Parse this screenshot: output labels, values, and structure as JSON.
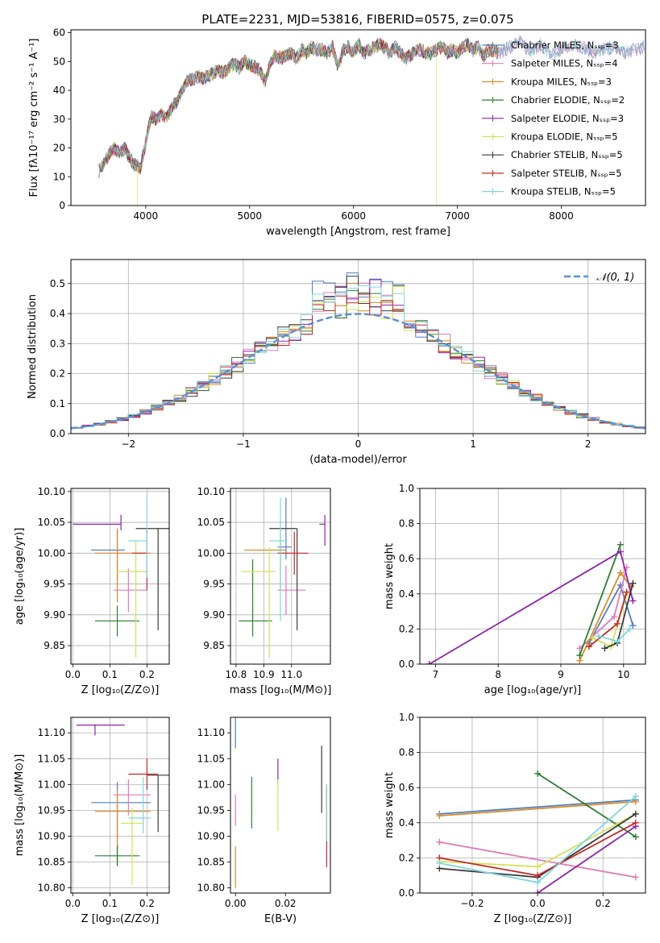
{
  "figure": {
    "title": "PLATE=2231, MJD=53816, FIBERID=0575, z=0.075"
  },
  "colors": {
    "series": [
      "#4f7fbf",
      "#e07ab8",
      "#d98c2b",
      "#2e7d32",
      "#8e24aa",
      "#d4e157",
      "#3a3a3a",
      "#c62828",
      "#7fd6e0"
    ],
    "gaussian": "#5b8fd6",
    "grid": "#b0b0b0"
  },
  "chart_data": [
    {
      "id": "spectrum",
      "type": "line",
      "title": "PLATE=2231, MJD=53816, FIBERID=0575, z=0.075",
      "xlabel": "wavelength [Angstrom, rest frame]",
      "ylabel": "Flux [fλ10⁻¹⁷ erg cm⁻² s⁻¹ A⁻¹]",
      "xlim": [
        3280,
        8810
      ],
      "ylim": [
        0,
        61
      ],
      "xticks": [
        4000,
        5000,
        6000,
        7000,
        8000
      ],
      "yticks": [
        0,
        10,
        20,
        30,
        40,
        50,
        60
      ],
      "grid": false,
      "legend": "top-right",
      "x": [
        3550,
        3600,
        3650,
        3700,
        3750,
        3800,
        3850,
        3900,
        3950,
        4000,
        4050,
        4100,
        4150,
        4200,
        4250,
        4300,
        4350,
        4400,
        4450,
        4500,
        4550,
        4600,
        4650,
        4700,
        4750,
        4800,
        4850,
        4900,
        4950,
        5000,
        5050,
        5100,
        5150,
        5200,
        5250,
        5300,
        5350,
        5400,
        5450,
        5500,
        5550,
        5600,
        5650,
        5700,
        5750,
        5800,
        5850,
        5900,
        5950,
        6000,
        6050,
        6100,
        6150,
        6200,
        6250,
        6300,
        6350,
        6400,
        6450,
        6500,
        6550,
        6600,
        6650,
        6700,
        6750,
        6800,
        6850,
        6900,
        6950,
        7000,
        7050,
        7100,
        7150,
        7200,
        7250,
        7300,
        7350,
        7400,
        7450,
        7500,
        7600,
        7700,
        7800,
        7900,
        8000,
        8100,
        8200,
        8300,
        8400,
        8500,
        8600,
        8700,
        8800
      ],
      "y": [
        12,
        15,
        18,
        20,
        18,
        20,
        16,
        14,
        13,
        22,
        31,
        30,
        32,
        30,
        34,
        36,
        40,
        43,
        44,
        45,
        44,
        45,
        46,
        47,
        46,
        48,
        49,
        48,
        50,
        49,
        48,
        47,
        43,
        50,
        52,
        51,
        52,
        53,
        51,
        54,
        53,
        55,
        54,
        54,
        53,
        55,
        48,
        54,
        55,
        53,
        56,
        53,
        54,
        55,
        56,
        55,
        53,
        55,
        53,
        51,
        52,
        54,
        54,
        53,
        53,
        54,
        55,
        53,
        54,
        53,
        55,
        56,
        54,
        55,
        52,
        54,
        54,
        53,
        54,
        55,
        57,
        53,
        56,
        52,
        54,
        56,
        55,
        53,
        54,
        55,
        53,
        54,
        55
      ],
      "series": [
        {
          "name": "Chabrier MILES, Nₛₛₚ=3"
        },
        {
          "name": "Salpeter MILES, Nₛₛₚ=4"
        },
        {
          "name": "Kroupa MILES, Nₛₛₚ=3"
        },
        {
          "name": "Chabrier ELODIE, Nₛₛₚ=2"
        },
        {
          "name": "Salpeter ELODIE, Nₛₛₚ=3"
        },
        {
          "name": "Kroupa ELODIE, Nₛₛₚ=5"
        },
        {
          "name": "Chabrier STELIB, Nₛₛₚ=5"
        },
        {
          "name": "Salpeter STELIB, Nₛₛₚ=5"
        },
        {
          "name": "Kroupa STELIB, Nₛₛₚ=5"
        }
      ]
    },
    {
      "id": "residuals",
      "type": "line",
      "xlabel": "(data-model)/error",
      "ylabel": "Normed distribution",
      "xlim": [
        -2.5,
        2.5
      ],
      "ylim": [
        0,
        0.58
      ],
      "xticks": [
        -2,
        -1,
        0,
        1,
        2
      ],
      "yticks": [
        0.0,
        0.1,
        0.2,
        0.3,
        0.4,
        0.5
      ],
      "grid": true,
      "legend": "top-right",
      "gaussian_label": "𝒩(0, 1)"
    },
    {
      "id": "age-vs-Z",
      "type": "scatter",
      "xlabel": "Z [log₁₀(Z/Z⊙)]",
      "ylabel": "age  [log₁₀(age/yr)]",
      "xlim": [
        -0.005,
        0.26
      ],
      "ylim": [
        9.82,
        10.105
      ],
      "xticks": [
        0.0,
        0.1,
        0.2
      ],
      "yticks": [
        9.85,
        9.9,
        9.95,
        10.0,
        10.05,
        10.1
      ],
      "grid": true,
      "points": [
        {
          "x": 0.12,
          "y": 10.005,
          "xerr": [
            0.07,
            0.02
          ],
          "yerr": [
            0.06,
            0.035
          ]
        },
        {
          "x": 0.15,
          "y": 9.94,
          "xerr": [
            0.04,
            0.05
          ],
          "yerr": [
            0.035,
            0.035
          ]
        },
        {
          "x": 0.12,
          "y": 10.0,
          "xerr": [
            0.06,
            0.09
          ],
          "yerr": [
            0.08,
            0.04
          ]
        },
        {
          "x": 0.12,
          "y": 9.89,
          "xerr": [
            0.06,
            0.06
          ],
          "yerr": [
            0.025,
            0.025
          ]
        },
        {
          "x": 0.13,
          "y": 10.047,
          "xerr": [
            0.13,
            0.0
          ],
          "yerr": [
            0.01,
            0.015
          ]
        },
        {
          "x": 0.17,
          "y": 9.97,
          "xerr": [
            0.05,
            0.03
          ],
          "yerr": [
            0.14,
            0.05
          ]
        },
        {
          "x": 0.23,
          "y": 10.04,
          "xerr": [
            0.06,
            0.03
          ],
          "yerr": [
            0.165,
            0.0
          ]
        },
        {
          "x": 0.2,
          "y": 10.0,
          "xerr": [
            0.04,
            0.0
          ],
          "yerr": [
            0.06,
            0.04
          ]
        },
        {
          "x": 0.2,
          "y": 10.02,
          "xerr": [
            0.05,
            0.0
          ],
          "yerr": [
            0.06,
            0.07
          ]
        }
      ]
    },
    {
      "id": "age-vs-mass",
      "type": "scatter",
      "xlabel": "mass [log₁₀(M/M⊙)]",
      "xlim": [
        10.78,
        11.14
      ],
      "ylim": [
        9.82,
        10.105
      ],
      "xticks": [
        10.8,
        10.9,
        11.0
      ],
      "yticks": [
        9.85,
        9.9,
        9.95,
        10.0,
        10.05,
        10.1
      ],
      "grid": true,
      "points": [
        {
          "x": 10.98,
          "y": 10.01,
          "xerr": [
            0.03,
            0.02
          ],
          "yerr": [
            0.02,
            0.08
          ]
        },
        {
          "x": 10.98,
          "y": 9.94,
          "xerr": [
            0.03,
            0.07
          ],
          "yerr": [
            0.04,
            0.04
          ]
        },
        {
          "x": 10.96,
          "y": 10.005,
          "xerr": [
            0.13,
            0.02
          ],
          "yerr": [
            0.065,
            0.035
          ]
        },
        {
          "x": 10.86,
          "y": 9.89,
          "xerr": [
            0.05,
            0.07
          ],
          "yerr": [
            0.025,
            0.1
          ]
        },
        {
          "x": 11.12,
          "y": 10.047,
          "xerr": [
            0.02,
            0.0
          ],
          "yerr": [
            0.035,
            0.015
          ]
        },
        {
          "x": 10.92,
          "y": 9.97,
          "xerr": [
            0.1,
            0.02
          ],
          "yerr": [
            0.14,
            0.04
          ]
        },
        {
          "x": 11.02,
          "y": 10.04,
          "xerr": [
            0.1,
            0.0
          ],
          "yerr": [
            0.165,
            0.0
          ]
        },
        {
          "x": 11.01,
          "y": 10.0,
          "xerr": [
            0.06,
            0.05
          ],
          "yerr": [
            0.035,
            0.035
          ]
        },
        {
          "x": 10.96,
          "y": 10.02,
          "xerr": [
            0.04,
            0.02
          ],
          "yerr": [
            0.13,
            0.07
          ]
        }
      ]
    },
    {
      "id": "weight-vs-age",
      "type": "line",
      "xlabel": "age  [log₁₀(age/yr)]",
      "ylabel": "mass weight",
      "xlim": [
        6.75,
        10.35
      ],
      "ylim": [
        0,
        1.0
      ],
      "xticks": [
        7,
        8,
        9,
        10
      ],
      "yticks": [
        0.0,
        0.2,
        0.4,
        0.6,
        0.8,
        1.0
      ],
      "grid": true,
      "series": [
        {
          "x": [
            9.45,
            9.95,
            10.15
          ],
          "y": [
            0.12,
            0.45,
            0.22
          ]
        },
        {
          "x": [
            9.3,
            9.85,
            10.05
          ],
          "y": [
            0.09,
            0.27,
            0.55
          ]
        },
        {
          "x": [
            9.3,
            9.95,
            10.12
          ],
          "y": [
            0.02,
            0.52,
            0.44
          ]
        },
        {
          "x": [
            9.3,
            9.95
          ],
          "y": [
            0.05,
            0.68
          ]
        },
        {
          "x": [
            6.9,
            9.95,
            10.15
          ],
          "y": [
            0.0,
            0.64,
            0.36
          ]
        },
        {
          "x": [
            9.5,
            9.8,
            10.05
          ],
          "y": [
            0.15,
            0.1,
            0.4
          ]
        },
        {
          "x": [
            9.7,
            9.9,
            10.15
          ],
          "y": [
            0.09,
            0.12,
            0.46
          ]
        },
        {
          "x": [
            9.45,
            9.9,
            10.05
          ],
          "y": [
            0.1,
            0.23,
            0.41
          ]
        },
        {
          "x": [
            9.6,
            9.9,
            10.1
          ],
          "y": [
            0.16,
            0.13,
            0.2
          ]
        }
      ]
    },
    {
      "id": "mass-vs-Z",
      "type": "scatter",
      "xlabel": "Z [log₁₀(Z/Z⊙)]",
      "ylabel": "mass [log₁₀(M/M⊙)]",
      "xlim": [
        -0.005,
        0.26
      ],
      "ylim": [
        10.79,
        11.13
      ],
      "xticks": [
        0.0,
        0.1,
        0.2
      ],
      "yticks": [
        10.8,
        10.85,
        10.9,
        10.95,
        11.0,
        11.05,
        11.1
      ],
      "grid": true,
      "points": [
        {
          "x": 0.12,
          "y": 10.965,
          "xerr": [
            0.07,
            0.09
          ],
          "yerr": [
            0.12,
            0.04
          ]
        },
        {
          "x": 0.15,
          "y": 10.98,
          "xerr": [
            0.04,
            0.06
          ],
          "yerr": [
            0.04,
            0.03
          ]
        },
        {
          "x": 0.12,
          "y": 10.948,
          "xerr": [
            0.06,
            0.09
          ],
          "yerr": [
            0.1,
            0.04
          ]
        },
        {
          "x": 0.12,
          "y": 10.862,
          "xerr": [
            0.06,
            0.06
          ],
          "yerr": [
            0.02,
            0.02
          ]
        },
        {
          "x": 0.06,
          "y": 11.115,
          "xerr": [
            0.05,
            0.08
          ],
          "yerr": [
            0.02,
            0.0
          ]
        },
        {
          "x": 0.16,
          "y": 10.925,
          "xerr": [
            0.03,
            0.03
          ],
          "yerr": [
            0.12,
            0.03
          ]
        },
        {
          "x": 0.23,
          "y": 11.018,
          "xerr": [
            0.03,
            0.03
          ],
          "yerr": [
            0.11,
            0.0
          ]
        },
        {
          "x": 0.2,
          "y": 11.02,
          "xerr": [
            0.05,
            0.03
          ],
          "yerr": [
            0.03,
            0.03
          ]
        },
        {
          "x": 0.19,
          "y": 10.935,
          "xerr": [
            0.04,
            0.02
          ],
          "yerr": [
            0.03,
            0.08
          ]
        }
      ]
    },
    {
      "id": "mass-vs-EBV",
      "type": "scatter",
      "xlabel": "E(B-V)",
      "xlim": [
        -0.002,
        0.038
      ],
      "ylim": [
        10.79,
        11.13
      ],
      "xticks": [
        0.0,
        0.02
      ],
      "yticks": [
        10.8,
        10.85,
        10.9,
        10.95,
        11.0,
        11.05,
        11.1
      ],
      "grid": false,
      "points": [
        {
          "x": 0.0,
          "y": 11.1,
          "yerr": [
            0.03,
            0.03
          ]
        },
        {
          "x": 0.0,
          "y": 10.96,
          "yerr": [
            0.04,
            0.02
          ]
        },
        {
          "x": 0.0,
          "y": 10.85,
          "yerr": [
            0.05,
            0.03
          ]
        },
        {
          "x": 0.0065,
          "y": 10.965,
          "yerr": [
            0.05,
            0.05
          ]
        },
        {
          "x": 0.017,
          "y": 11.02,
          "yerr": [
            0.02,
            0.03
          ]
        },
        {
          "x": 0.017,
          "y": 10.96,
          "yerr": [
            0.05,
            0.05
          ]
        },
        {
          "x": 0.0345,
          "y": 11.005,
          "yerr": [
            0.06,
            0.07
          ]
        },
        {
          "x": 0.0365,
          "y": 10.93,
          "yerr": [
            0.09,
            0.07
          ]
        },
        {
          "x": 0.0365,
          "y": 10.94,
          "yerr": [
            0.05,
            0.06
          ]
        }
      ]
    },
    {
      "id": "weight-vs-Z",
      "type": "line",
      "xlabel": "Z [log₁₀(Z/Z⊙)]",
      "ylabel": "mass weight",
      "xlim": [
        -0.36,
        0.33
      ],
      "ylim": [
        0,
        1.0
      ],
      "xticks": [
        -0.2,
        0.0,
        0.2
      ],
      "yticks": [
        0.0,
        0.2,
        0.4,
        0.6,
        0.8,
        1.0
      ],
      "grid": true,
      "series": [
        {
          "x": [
            -0.3,
            0.3
          ],
          "y": [
            0.45,
            0.53
          ]
        },
        {
          "x": [
            -0.3,
            0.3
          ],
          "y": [
            0.29,
            0.09
          ]
        },
        {
          "x": [
            -0.3,
            0.3
          ],
          "y": [
            0.44,
            0.52
          ]
        },
        {
          "x": [
            0.0,
            0.3
          ],
          "y": [
            0.68,
            0.32
          ]
        },
        {
          "x": [
            0.0,
            0.3
          ],
          "y": [
            0.0,
            0.38
          ]
        },
        {
          "x": [
            -0.3,
            0.0,
            0.3
          ],
          "y": [
            0.18,
            0.15,
            0.45
          ]
        },
        {
          "x": [
            -0.3,
            0.0,
            0.3
          ],
          "y": [
            0.14,
            0.09,
            0.45
          ]
        },
        {
          "x": [
            -0.3,
            0.0,
            0.3
          ],
          "y": [
            0.2,
            0.1,
            0.4
          ]
        },
        {
          "x": [
            -0.3,
            0.0,
            0.3
          ],
          "y": [
            0.17,
            0.06,
            0.55
          ]
        }
      ]
    }
  ]
}
